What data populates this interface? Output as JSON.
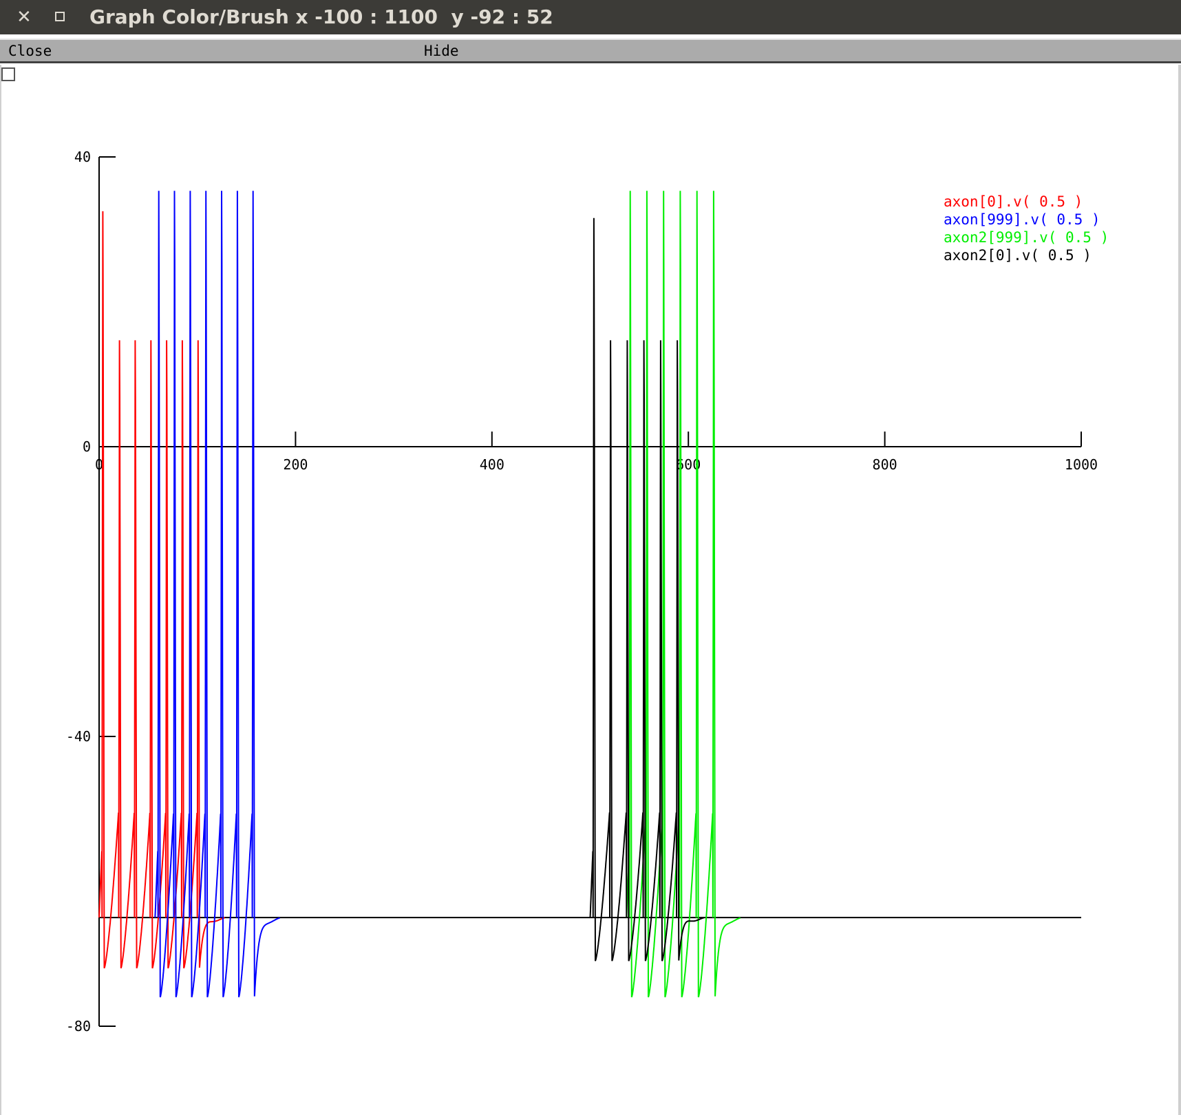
{
  "window": {
    "title": "Graph Color/Brush x -100 : 1100  y -92 : 52",
    "close_glyph": "✕"
  },
  "menu": {
    "close_label": "Close",
    "hide_label": "Hide"
  },
  "chart_data": {
    "type": "line",
    "xlim": [
      0,
      1000
    ],
    "ylim": [
      -80,
      40
    ],
    "x_ticks": [
      "0",
      "200",
      "400",
      "600",
      "800",
      "1000"
    ],
    "y_ticks": [
      "40",
      "0",
      "-40",
      "-80"
    ],
    "resting_potential": -65,
    "legend_placement": "top-right",
    "series": [
      {
        "name": "axon[0].v( 0.5 )",
        "color": "#ff0000",
        "spikes": [
          {
            "t": 3,
            "peak": 39
          },
          {
            "t": 20,
            "peak": 20
          },
          {
            "t": 36,
            "peak": 20
          },
          {
            "t": 52,
            "peak": 20
          },
          {
            "t": 68,
            "peak": 20
          },
          {
            "t": 84,
            "peak": 20
          },
          {
            "t": 100,
            "peak": 20
          }
        ],
        "trough": -72
      },
      {
        "name": "axon[999].v( 0.5 )",
        "color": "#0000ff",
        "spikes": [
          {
            "t": 60,
            "peak": 42
          },
          {
            "t": 76,
            "peak": 42
          },
          {
            "t": 92,
            "peak": 42
          },
          {
            "t": 108,
            "peak": 42
          },
          {
            "t": 124,
            "peak": 42
          },
          {
            "t": 140,
            "peak": 42
          },
          {
            "t": 156,
            "peak": 42
          }
        ],
        "trough": -76
      },
      {
        "name": "axon2[999].v( 0.5 )",
        "color": "#00ee00",
        "spikes": [
          {
            "t": 540,
            "peak": 42
          },
          {
            "t": 557,
            "peak": 42
          },
          {
            "t": 574,
            "peak": 42
          },
          {
            "t": 591,
            "peak": 42
          },
          {
            "t": 608,
            "peak": 42
          },
          {
            "t": 625,
            "peak": 42
          }
        ],
        "trough": -76
      },
      {
        "name": "axon2[0].v( 0.5 )",
        "color": "#000000",
        "spikes": [
          {
            "t": 503,
            "peak": 38
          },
          {
            "t": 520,
            "peak": 20
          },
          {
            "t": 537,
            "peak": 20
          },
          {
            "t": 554,
            "peak": 20
          },
          {
            "t": 571,
            "peak": 20
          },
          {
            "t": 588,
            "peak": 20
          }
        ],
        "trough": -71
      }
    ]
  }
}
